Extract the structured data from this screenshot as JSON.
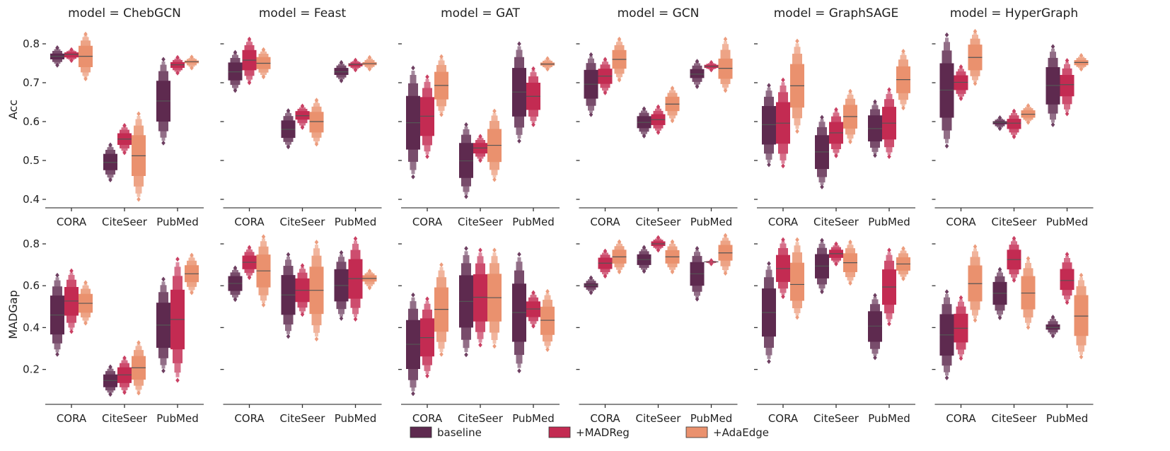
{
  "chart_data": {
    "type": "boxen",
    "stat_order": [
      "low_outlier",
      "q1",
      "median",
      "q3",
      "high_outlier"
    ],
    "categories": [
      "CORA",
      "CiteSeer",
      "PubMed"
    ],
    "hue_order": [
      "baseline",
      "+MADReg",
      "+AdaEdge"
    ],
    "colors": {
      "baseline": "#5e2a4f",
      "+MADReg": "#c32b52",
      "+AdaEdge": "#ea916e",
      "median": "#555555"
    },
    "legend": {
      "placement": "bottom-center",
      "entries": [
        "baseline",
        "+MADReg",
        "+AdaEdge"
      ]
    },
    "grid": false,
    "rows": [
      {
        "ylabel": "Acc",
        "yticks": [
          "0.4",
          "0.5",
          "0.6",
          "0.7",
          "0.8"
        ],
        "ylim": [
          0.378,
          0.84
        ]
      },
      {
        "ylabel": "MADGap",
        "yticks": [
          "0.2",
          "0.4",
          "0.6",
          "0.8"
        ],
        "ylim": [
          0.033,
          0.87
        ]
      }
    ],
    "panels": [
      {
        "title": "model = ChebGCN",
        "Acc": {
          "CORA": [
            [
              0.745,
              0.76,
              0.768,
              0.775,
              0.79
            ],
            [
              0.757,
              0.765,
              0.773,
              0.778,
              0.785
            ],
            [
              0.71,
              0.74,
              0.768,
              0.795,
              0.825
            ]
          ],
          "CiteSeer": [
            [
              0.45,
              0.475,
              0.495,
              0.517,
              0.54
            ],
            [
              0.52,
              0.54,
              0.555,
              0.57,
              0.59
            ],
            [
              0.4,
              0.46,
              0.512,
              0.565,
              0.62
            ]
          ],
          "PubMed": [
            [
              0.545,
              0.6,
              0.653,
              0.705,
              0.76
            ],
            [
              0.725,
              0.738,
              0.746,
              0.753,
              0.765
            ],
            [
              0.738,
              0.75,
              0.754,
              0.757,
              0.766
            ]
          ]
        },
        "MADGap": {
          "CORA": [
            [
              0.272,
              0.367,
              0.46,
              0.553,
              0.65
            ],
            [
              0.381,
              0.457,
              0.527,
              0.594,
              0.671
            ],
            [
              0.421,
              0.471,
              0.516,
              0.561,
              0.615
            ]
          ],
          "CiteSeer": [
            [
              0.081,
              0.115,
              0.147,
              0.176,
              0.212
            ],
            [
              0.09,
              0.135,
              0.174,
              0.21,
              0.255
            ],
            [
              0.087,
              0.151,
              0.208,
              0.264,
              0.328
            ]
          ],
          "PubMed": [
            [
              0.193,
              0.303,
              0.412,
              0.519,
              0.631
            ],
            [
              0.148,
              0.296,
              0.439,
              0.581,
              0.727
            ],
            [
              0.567,
              0.617,
              0.657,
              0.698,
              0.746
            ]
          ]
        }
      },
      {
        "title": "model = Feast",
        "Acc": {
          "CORA": [
            [
              0.68,
              0.706,
              0.728,
              0.752,
              0.778
            ],
            [
              0.7,
              0.732,
              0.758,
              0.784,
              0.812
            ],
            [
              0.715,
              0.735,
              0.75,
              0.766,
              0.785
            ]
          ],
          "CiteSeer": [
            [
              0.535,
              0.558,
              0.58,
              0.603,
              0.628
            ],
            [
              0.585,
              0.605,
              0.615,
              0.627,
              0.64
            ],
            [
              0.542,
              0.572,
              0.6,
              0.625,
              0.655
            ]
          ],
          "PubMed": [
            [
              0.705,
              0.72,
              0.728,
              0.738,
              0.752
            ],
            [
              0.733,
              0.742,
              0.747,
              0.75,
              0.758
            ],
            [
              0.735,
              0.745,
              0.749,
              0.753,
              0.765
            ]
          ]
        },
        "MADGap": {
          "CORA": [
            [
              0.534,
              0.575,
              0.611,
              0.646,
              0.685
            ],
            [
              0.639,
              0.679,
              0.712,
              0.744,
              0.783
            ],
            [
              0.508,
              0.592,
              0.671,
              0.749,
              0.834
            ]
          ],
          "CiteSeer": [
            [
              0.358,
              0.461,
              0.556,
              0.651,
              0.749
            ],
            [
              0.463,
              0.522,
              0.578,
              0.635,
              0.696
            ],
            [
              0.345,
              0.465,
              0.578,
              0.691,
              0.808
            ]
          ],
          "PubMed": [
            [
              0.444,
              0.525,
              0.601,
              0.679,
              0.758
            ],
            [
              0.44,
              0.538,
              0.634,
              0.727,
              0.825
            ],
            [
              0.59,
              0.62,
              0.635,
              0.65,
              0.67
            ]
          ]
        }
      },
      {
        "title": "model = GAT",
        "Acc": {
          "CORA": [
            [
              0.458,
              0.528,
              0.597,
              0.666,
              0.738
            ],
            [
              0.51,
              0.563,
              0.614,
              0.663,
              0.715
            ],
            [
              0.618,
              0.657,
              0.693,
              0.728,
              0.767
            ]
          ],
          "CiteSeer": [
            [
              0.407,
              0.455,
              0.499,
              0.545,
              0.592
            ],
            [
              0.5,
              0.518,
              0.532,
              0.545,
              0.562
            ],
            [
              0.451,
              0.496,
              0.539,
              0.581,
              0.627
            ]
          ],
          "PubMed": [
            [
              0.55,
              0.613,
              0.676,
              0.738,
              0.8
            ],
            [
              0.592,
              0.63,
              0.665,
              0.7,
              0.736
            ],
            [
              0.735,
              0.744,
              0.748,
              0.752,
              0.762
            ]
          ]
        },
        "MADGap": {
          "CORA": [
            [
              0.084,
              0.202,
              0.32,
              0.436,
              0.556
            ],
            [
              0.169,
              0.262,
              0.352,
              0.444,
              0.537
            ],
            [
              0.272,
              0.38,
              0.487,
              0.592,
              0.7
            ]
          ],
          "CiteSeer": [
            [
              0.27,
              0.4,
              0.525,
              0.65,
              0.778
            ],
            [
              0.317,
              0.429,
              0.545,
              0.655,
              0.77
            ],
            [
              0.311,
              0.429,
              0.543,
              0.657,
              0.77
            ]
          ],
          "PubMed": [
            [
              0.193,
              0.332,
              0.472,
              0.61,
              0.75
            ],
            [
              0.407,
              0.45,
              0.489,
              0.525,
              0.567
            ],
            [
              0.295,
              0.365,
              0.435,
              0.5,
              0.573
            ]
          ]
        }
      },
      {
        "title": "model = GCN",
        "Acc": {
          "CORA": [
            [
              0.618,
              0.659,
              0.696,
              0.733,
              0.772
            ],
            [
              0.674,
              0.697,
              0.717,
              0.736,
              0.76
            ],
            [
              0.707,
              0.736,
              0.76,
              0.784,
              0.812
            ]
          ],
          "CiteSeer": [
            [
              0.563,
              0.583,
              0.598,
              0.614,
              0.633
            ],
            [
              0.572,
              0.591,
              0.605,
              0.619,
              0.638
            ],
            [
              0.602,
              0.627,
              0.645,
              0.664,
              0.686
            ]
          ],
          "PubMed": [
            [
              0.69,
              0.712,
              0.722,
              0.735,
              0.755
            ],
            [
              0.733,
              0.738,
              0.742,
              0.746,
              0.752
            ],
            [
              0.68,
              0.71,
              0.737,
              0.762,
              0.812
            ]
          ]
        },
        "MADGap": {
          "CORA": [
            [
              0.567,
              0.592,
              0.603,
              0.612,
              0.638
            ],
            [
              0.646,
              0.68,
              0.708,
              0.734,
              0.766
            ],
            [
              0.666,
              0.706,
              0.738,
              0.772,
              0.81
            ]
          ],
          "CiteSeer": [
            [
              0.669,
              0.699,
              0.725,
              0.75,
              0.783
            ],
            [
              0.77,
              0.79,
              0.8,
              0.812,
              0.83
            ],
            [
              0.666,
              0.706,
              0.738,
              0.77,
              0.81
            ]
          ],
          "PubMed": [
            [
              0.536,
              0.6,
              0.657,
              0.713,
              0.778
            ],
            [
              0.705,
              0.712,
              0.714,
              0.716,
              0.72
            ],
            [
              0.66,
              0.72,
              0.757,
              0.795,
              0.84
            ]
          ]
        }
      },
      {
        "title": "model = GraphSAGE",
        "Acc": {
          "CORA": [
            [
              0.489,
              0.541,
              0.592,
              0.64,
              0.693
            ],
            [
              0.486,
              0.543,
              0.596,
              0.65,
              0.707
            ],
            [
              0.575,
              0.636,
              0.692,
              0.748,
              0.807
            ]
          ],
          "CiteSeer": [
            [
              0.432,
              0.478,
              0.522,
              0.565,
              0.611
            ],
            [
              0.512,
              0.543,
              0.571,
              0.599,
              0.631
            ],
            [
              0.548,
              0.582,
              0.613,
              0.643,
              0.678
            ]
          ],
          "PubMed": [
            [
              0.513,
              0.549,
              0.582,
              0.616,
              0.651
            ],
            [
              0.51,
              0.554,
              0.596,
              0.638,
              0.682
            ],
            [
              0.635,
              0.673,
              0.708,
              0.742,
              0.781
            ]
          ]
        },
        "MADGap": {
          "CORA": [
            [
              0.238,
              0.357,
              0.472,
              0.587,
              0.706
            ],
            [
              0.548,
              0.618,
              0.682,
              0.747,
              0.82
            ],
            [
              0.449,
              0.528,
              0.606,
              0.71,
              0.82
            ]
          ],
          "CiteSeer": [
            [
              0.571,
              0.635,
              0.694,
              0.751,
              0.817
            ],
            [
              0.704,
              0.733,
              0.753,
              0.772,
              0.8
            ],
            [
              0.612,
              0.665,
              0.71,
              0.755,
              0.809
            ]
          ],
          "PubMed": [
            [
              0.256,
              0.332,
              0.407,
              0.478,
              0.554
            ],
            [
              0.418,
              0.509,
              0.594,
              0.678,
              0.77
            ],
            [
              0.633,
              0.672,
              0.704,
              0.736,
              0.778
            ]
          ]
        }
      },
      {
        "title": "model = HyperGraph",
        "Acc": {
          "CORA": [
            [
              0.537,
              0.61,
              0.681,
              0.75,
              0.823
            ],
            [
              0.659,
              0.681,
              0.701,
              0.719,
              0.741
            ],
            [
              0.698,
              0.732,
              0.765,
              0.798,
              0.832
            ]
          ],
          "CiteSeer": [
            [
              0.582,
              0.593,
              0.598,
              0.601,
              0.61
            ],
            [
              0.561,
              0.581,
              0.596,
              0.607,
              0.627
            ],
            [
              0.598,
              0.61,
              0.619,
              0.629,
              0.641
            ]
          ],
          "PubMed": [
            [
              0.592,
              0.644,
              0.693,
              0.74,
              0.793
            ],
            [
              0.62,
              0.665,
              0.695,
              0.72,
              0.757
            ],
            [
              0.735,
              0.745,
              0.752,
              0.758,
              0.77
            ]
          ]
        },
        "MADGap": {
          "CORA": [
            [
              0.16,
              0.266,
              0.365,
              0.464,
              0.571
            ],
            [
              0.253,
              0.329,
              0.397,
              0.466,
              0.543
            ],
            [
              0.435,
              0.525,
              0.61,
              0.697,
              0.787
            ]
          ],
          "CiteSeer": [
            [
              0.447,
              0.509,
              0.564,
              0.618,
              0.678
            ],
            [
              0.626,
              0.678,
              0.725,
              0.772,
              0.826
            ],
            [
              0.401,
              0.487,
              0.565,
              0.646,
              0.73
            ]
          ],
          "PubMed": [
            [
              0.36,
              0.39,
              0.4,
              0.415,
              0.45
            ],
            [
              0.52,
              0.58,
              0.625,
              0.68,
              0.75
            ],
            [
              0.26,
              0.36,
              0.455,
              0.555,
              0.65
            ]
          ]
        }
      }
    ]
  }
}
